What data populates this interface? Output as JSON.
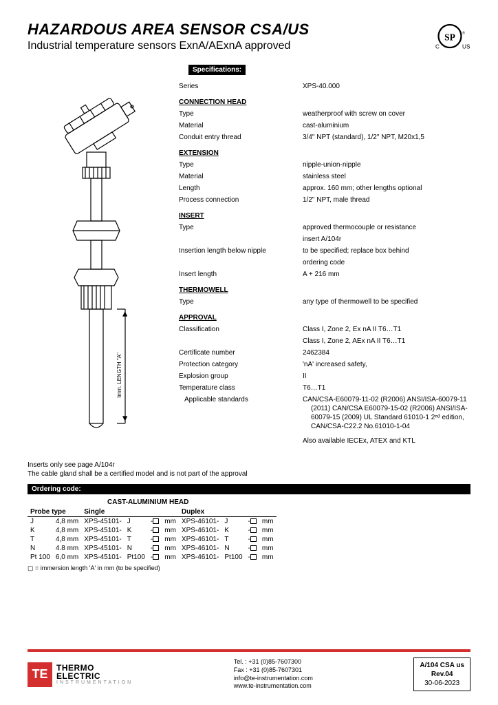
{
  "header": {
    "title": "HAZARDOUS AREA SENSOR CSA/US",
    "subtitle": "Industrial temperature sensors ExnA/AExnA approved"
  },
  "sections": {
    "specifications_label": "Specifications:",
    "ordering_label": "Ordering code:"
  },
  "specs": {
    "series_label": "Series",
    "series_value": "XPS-40.000",
    "connection_head_heading": "CONNECTION HEAD",
    "conn_type_label": "Type",
    "conn_type_value": "weatherproof with screw on cover",
    "conn_material_label": "Material",
    "conn_material_value": "cast-aluminium",
    "conn_conduit_label": "Conduit entry thread",
    "conn_conduit_value": "3/4\" NPT (standard), 1/2\" NPT, M20x1,5",
    "extension_heading": "EXTENSION",
    "ext_type_label": "Type",
    "ext_type_value": "nipple-union-nipple",
    "ext_material_label": "Material",
    "ext_material_value": "stainless steel",
    "ext_length_label": "Length",
    "ext_length_value": "approx. 160 mm; other lengths optional",
    "ext_process_label": "Process connection",
    "ext_process_value": "1/2\" NPT, male thread",
    "insert_heading": "INSERT",
    "ins_type_label": "Type",
    "ins_type_value1": "approved thermocouple or resistance",
    "ins_type_value2": "insert A/104r",
    "ins_below_label": "Insertion length below nipple",
    "ins_below_value1": "to be specified; replace box behind",
    "ins_below_value2": "ordering code",
    "ins_length_label": "Insert length",
    "ins_length_value": "A + 216 mm",
    "thermowell_heading": "THERMOWELL",
    "tw_type_label": "Type",
    "tw_type_value": "any type of thermowell to be specified",
    "approval_heading": "APPROVAL",
    "app_class_label": "Classification",
    "app_class_value1": "Class I, Zone 2, Ex nA II T6…T1",
    "app_class_value2": "Class I, Zone 2, AEx nA II T6…T1",
    "app_cert_label": "Certificate number",
    "app_cert_value": "2462384",
    "app_prot_label": "Protection category",
    "app_prot_value": "'nA' increased safety,",
    "app_expl_label": "Explosion group",
    "app_expl_value": "II",
    "app_temp_label": "Temperature class",
    "app_temp_value": "T6…T1",
    "app_std_label": "Applicable standards",
    "app_std_value": "CAN/CSA-E60079-11-02 (R2006) ANSI/ISA-60079-11 (2011) CAN/CSA E60079-15-02 (R2006) ANSI/ISA-60079-15 (2009) UL Standard 61010-1 2ⁿᵈ edition,  CAN/CSA-C22.2 No.61010-1-04",
    "app_also": "Also available IECEx, ATEX and KTL"
  },
  "notes": {
    "line1": "Inserts only see page A/104r",
    "line2": "The cable gland shall be a certified model and is not part of the approval"
  },
  "ordering": {
    "head_heading": "CAST-ALUMINIUM HEAD",
    "col_probe": "Probe type",
    "col_single": "Single",
    "col_duplex": "Duplex",
    "rows": [
      {
        "type": "J",
        "dia": "4,8 mm",
        "single_code": "XPS-45101-",
        "single_tc": "J",
        "duplex_code": "XPS-46101-",
        "duplex_tc": "J"
      },
      {
        "type": "K",
        "dia": "4,8 mm",
        "single_code": "XPS-45101-",
        "single_tc": "K",
        "duplex_code": "XPS-46101-",
        "duplex_tc": "K"
      },
      {
        "type": "T",
        "dia": "4,8 mm",
        "single_code": "XPS-45101-",
        "single_tc": "T",
        "duplex_code": "XPS-46101-",
        "duplex_tc": "T"
      },
      {
        "type": "N",
        "dia": "4.8 mm",
        "single_code": "XPS-45101-",
        "single_tc": "N",
        "duplex_code": "XPS-46101-",
        "duplex_tc": "N"
      },
      {
        "type": "Pt 100",
        "dia": "6,0 mm",
        "single_code": "XPS-45101-",
        "single_tc": "Pt100",
        "duplex_code": "XPS-46101-",
        "duplex_tc": "Pt100"
      }
    ],
    "mm_suffix": "mm",
    "dash": "-",
    "legend": "▢ = immersion length 'A' in mm (to be specified)"
  },
  "footer": {
    "logo_mark": "TE",
    "logo_line1": "THERMO",
    "logo_line2": "ELECTRIC",
    "logo_line3": "INSTRUMENTATION",
    "tel": "Tel. : +31 (0)85-7607300",
    "fax": "Fax : +31 (0)85-7607301",
    "email": "info@te-instrumentation.com",
    "web": "www.te-instrumentation.com",
    "doc_id": "A/104 CSA us",
    "doc_rev": "Rev.04",
    "doc_date": "30-06-2023"
  },
  "colors": {
    "accent_red": "#d32f2f",
    "black": "#000000",
    "gray": "#888888"
  }
}
